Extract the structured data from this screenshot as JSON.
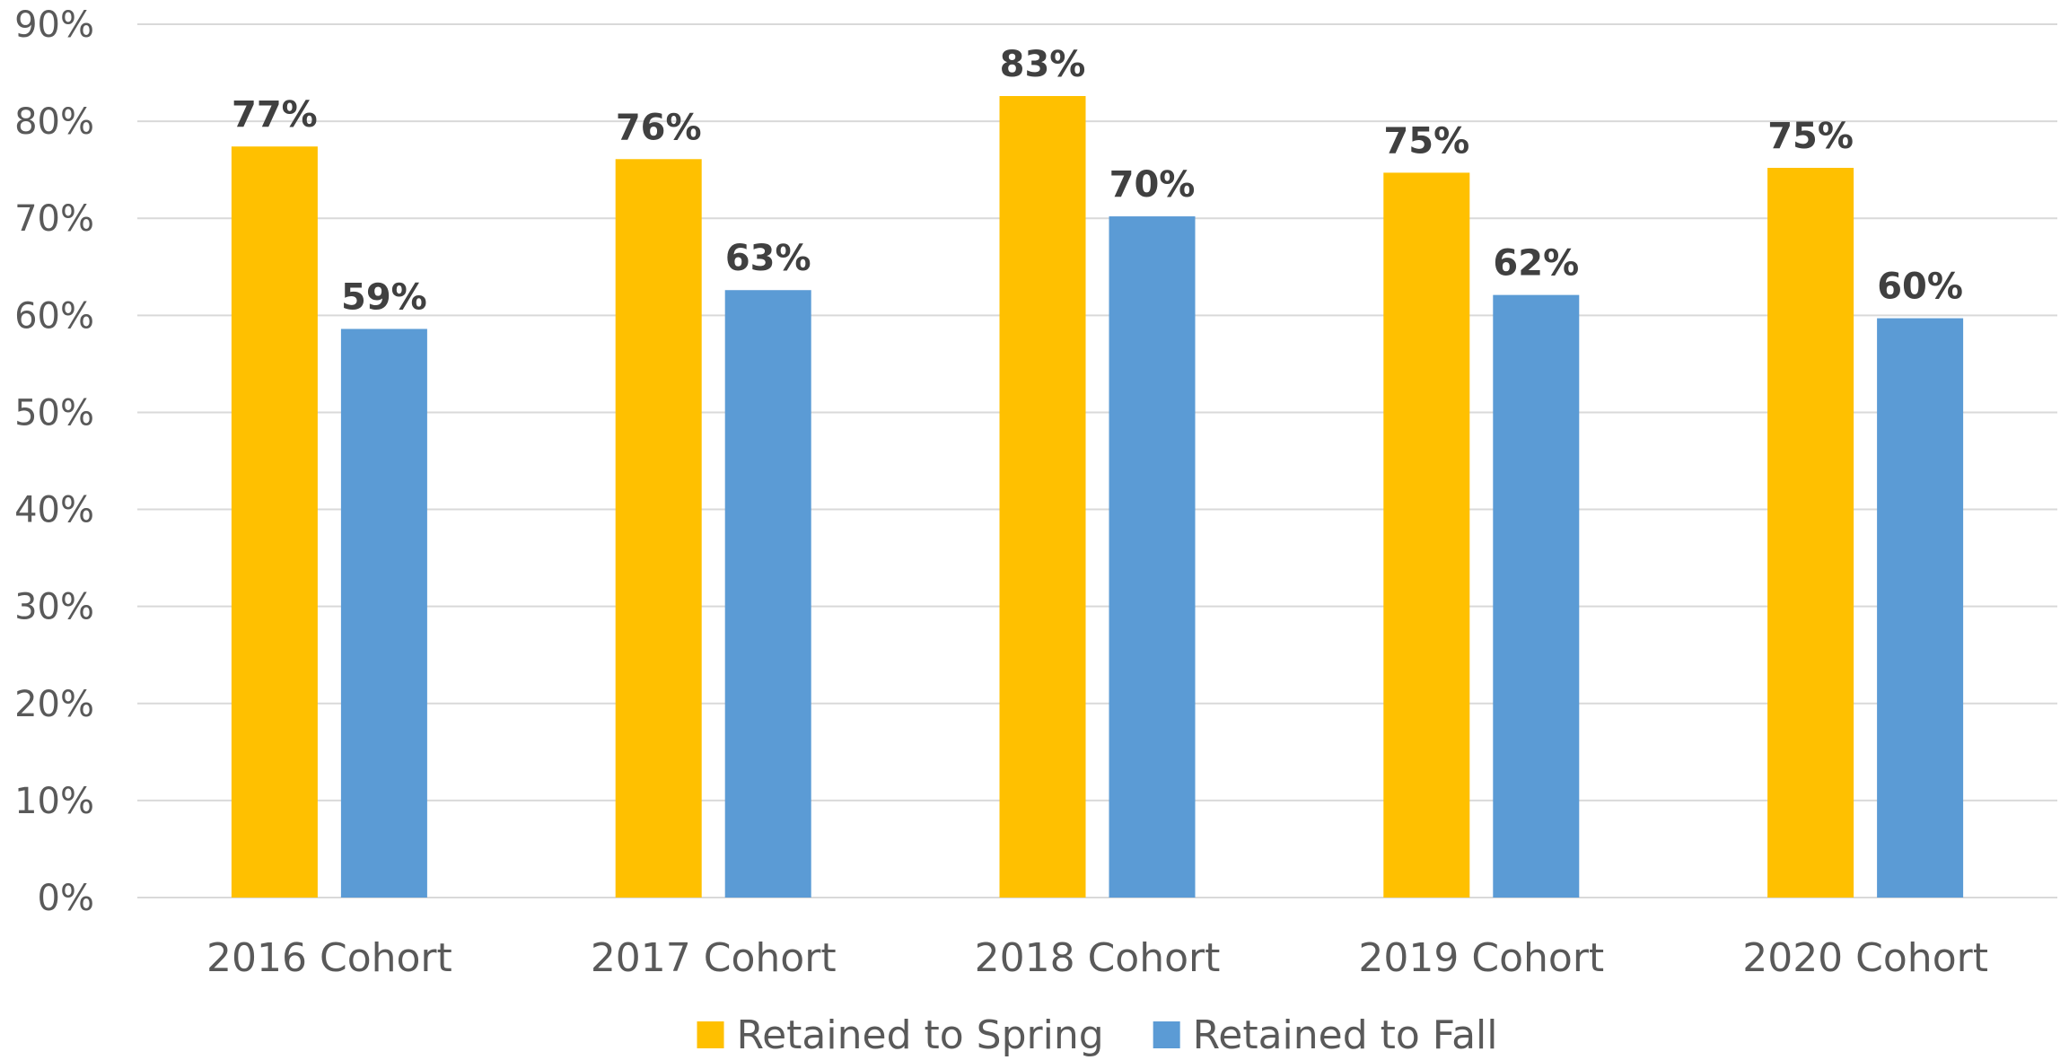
{
  "chart_data": {
    "type": "bar",
    "title": "",
    "xlabel": "",
    "ylabel": "",
    "categories": [
      "2016 Cohort",
      "2017 Cohort",
      "2018 Cohort",
      "2019 Cohort",
      "2020 Cohort"
    ],
    "series": [
      {
        "name": "Retained to Spring",
        "color": "#FFC000",
        "values": [
          77.4,
          76.1,
          82.6,
          74.7,
          75.2
        ],
        "labels": [
          "77%",
          "76%",
          "83%",
          "75%",
          "75%"
        ]
      },
      {
        "name": "Retained to Fall",
        "color": "#5B9BD5",
        "values": [
          58.6,
          62.6,
          70.2,
          62.1,
          59.7
        ],
        "labels": [
          "59%",
          "63%",
          "70%",
          "62%",
          "60%"
        ]
      }
    ],
    "ylim": [
      0,
      90
    ],
    "yticks": [
      0,
      10,
      20,
      30,
      40,
      50,
      60,
      70,
      80,
      90
    ],
    "ytick_labels": [
      "0%",
      "10%",
      "20%",
      "30%",
      "40%",
      "50%",
      "60%",
      "70%",
      "80%",
      "90%"
    ],
    "grid": true,
    "grid_color": "#D9D9D9",
    "legend": "bottom"
  }
}
